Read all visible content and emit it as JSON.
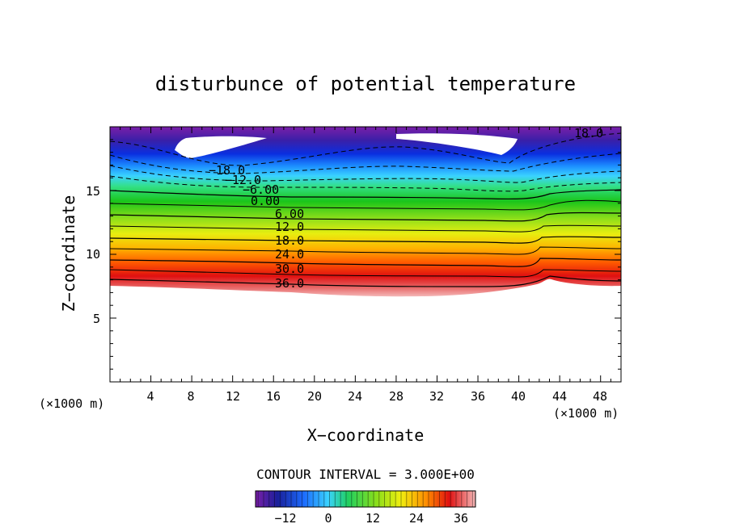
{
  "chart_data": {
    "type": "heatmap",
    "title": "disturbunce of potential temperature",
    "xlabel": "X−coordinate",
    "ylabel": "Z−coordinate",
    "x_unit": "(×1000 m)",
    "y_unit": "(×1000 m)",
    "xlim": [
      0,
      50
    ],
    "ylim": [
      0,
      20
    ],
    "x_ticks": [
      "4",
      "8",
      "12",
      "16",
      "20",
      "24",
      "28",
      "32",
      "36",
      "40",
      "44",
      "48"
    ],
    "y_ticks": [
      "5",
      "10",
      "15"
    ],
    "contour_labels": [
      "−18.0",
      "−12.0",
      "−6.00",
      "0.00",
      "6.00",
      "12.0",
      "18.0",
      "24.0",
      "30.0",
      "36.0",
      "18.0"
    ],
    "contour_interval_text": "CONTOUR INTERVAL = 3.000E+00",
    "colorbar": {
      "ticks": [
        "−12",
        "0",
        "12",
        "24",
        "36"
      ],
      "min": -24,
      "max": 42
    },
    "description_values": {
      "top_value": -21,
      "base_value": 38,
      "base_height": 7.6,
      "top_height": 19.6
    }
  },
  "colors": {
    "background": "#ffffff",
    "axis": "#000000",
    "contour": "#000000"
  }
}
